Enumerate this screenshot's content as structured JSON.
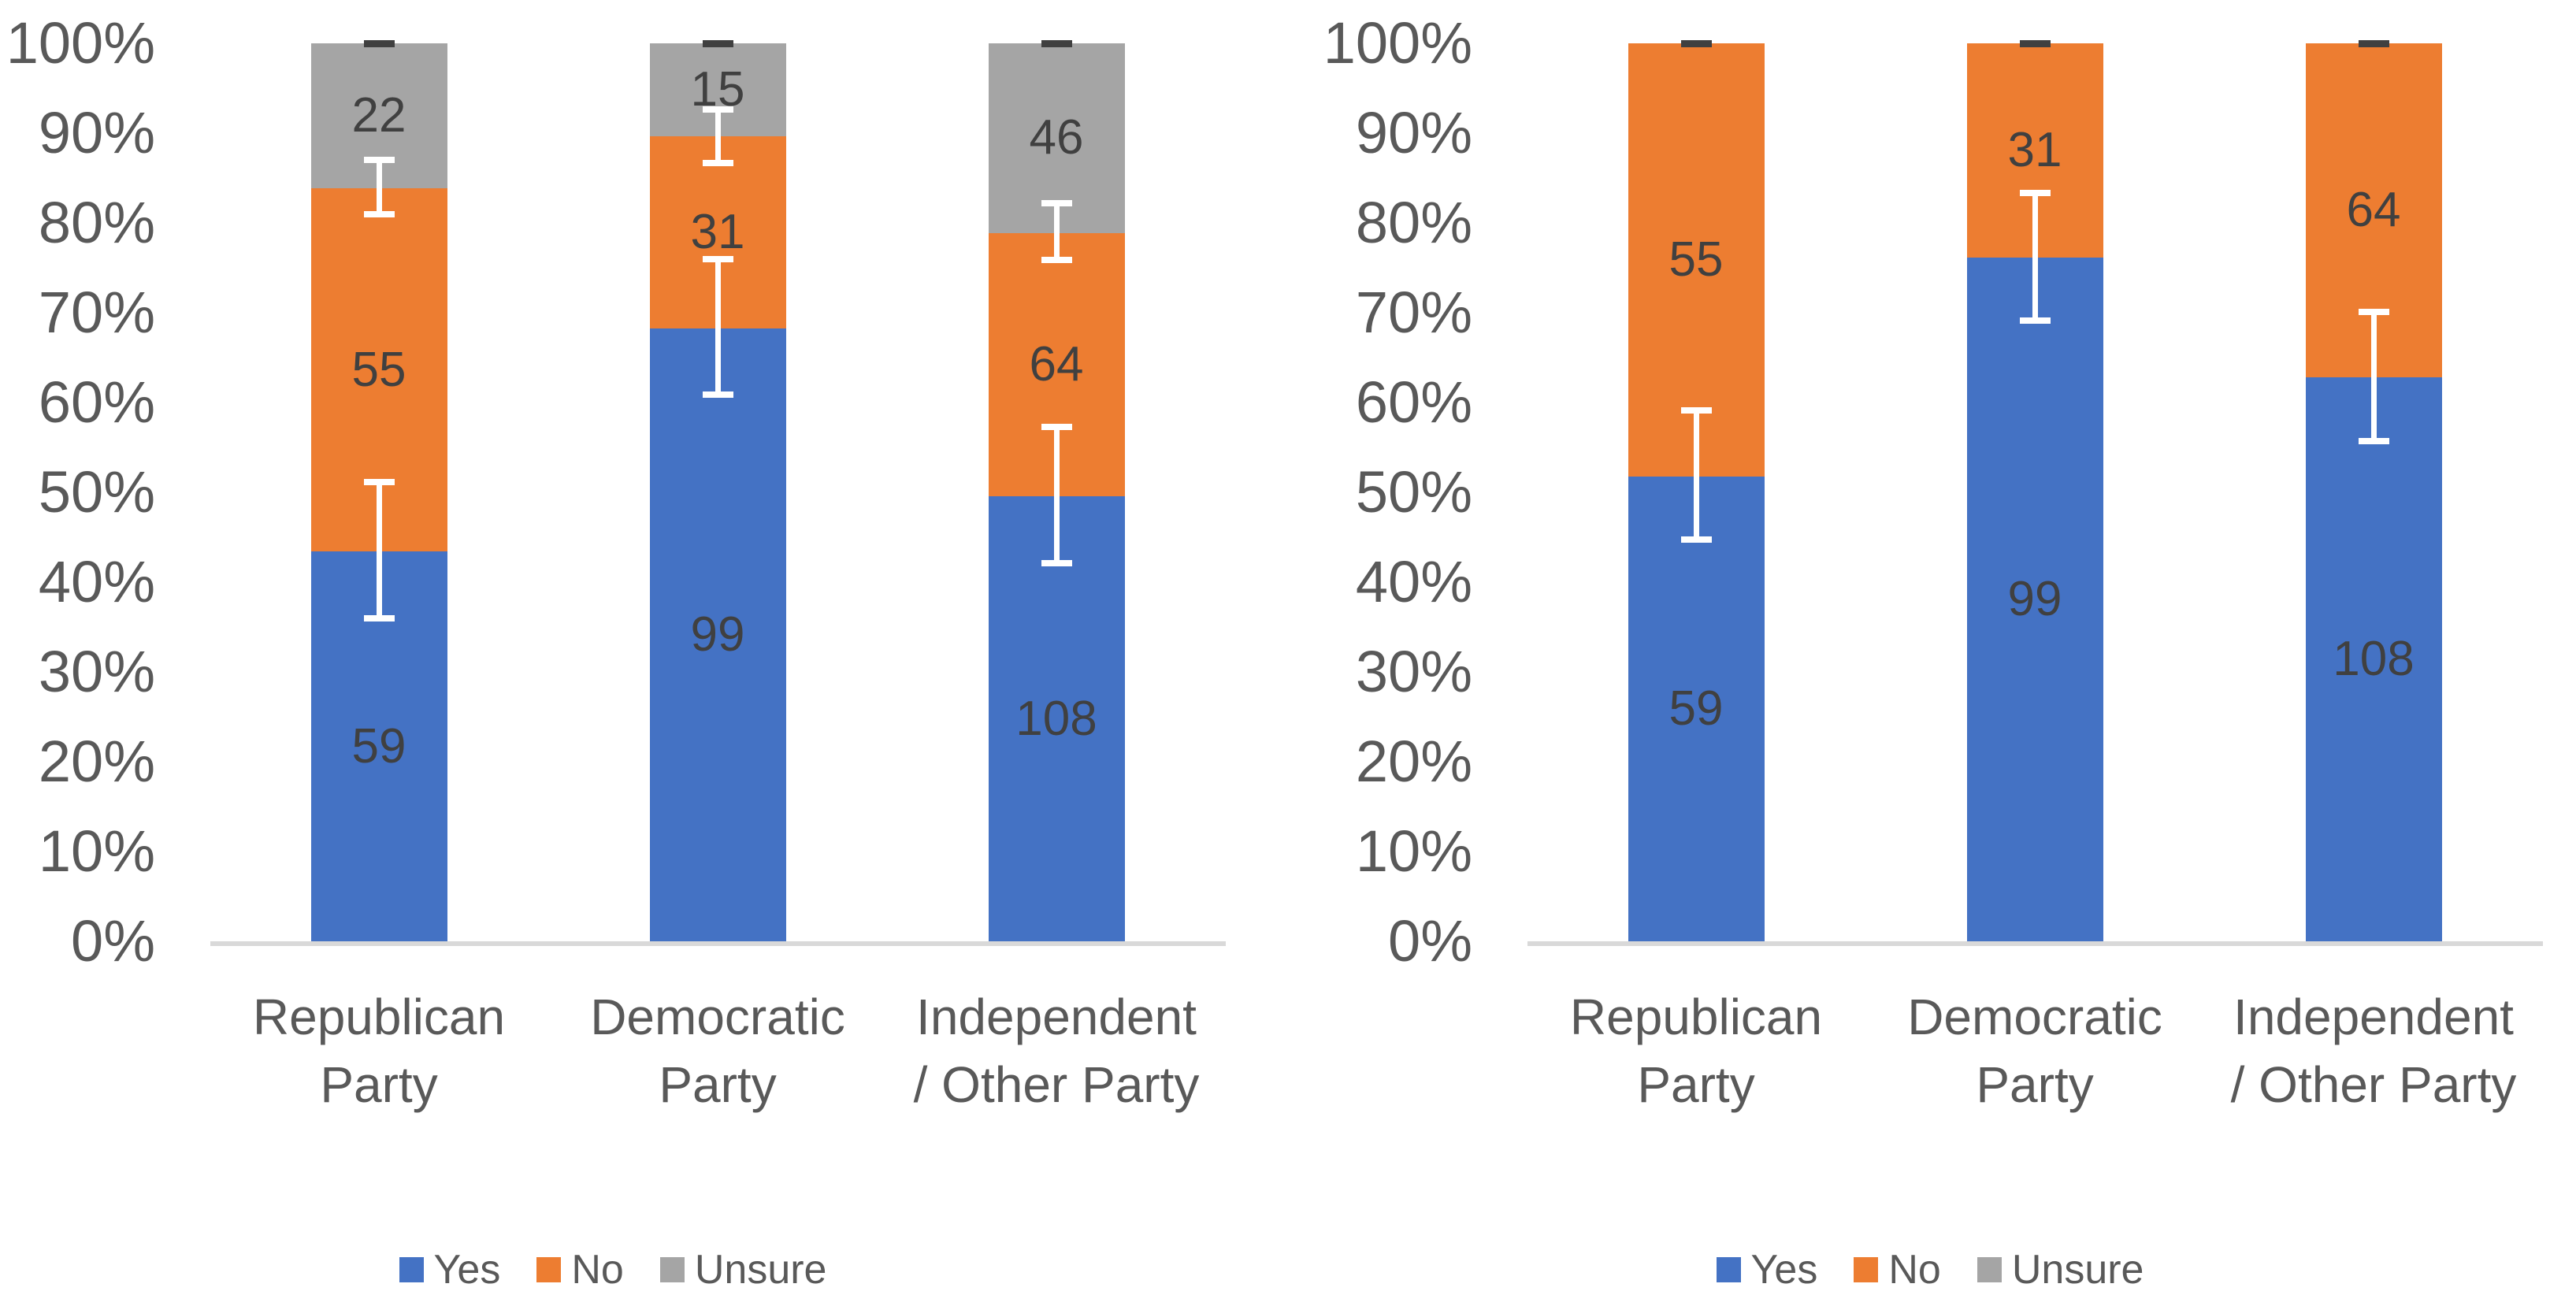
{
  "palette": {
    "yes": "#4472C4",
    "no": "#ED7D31",
    "unsure": "#A5A5A5",
    "axis_line": "#D9D9D9",
    "tick_text": "#595959",
    "category_text": "#595959",
    "data_label_text": "#404040",
    "error_bar": "#FFFFFF",
    "top_cap": "#404040",
    "background": "#FFFFFF"
  },
  "chart_data": [
    {
      "type": "bar",
      "subtype": "stacked-100-percent",
      "title": "",
      "xlabel": "",
      "ylabel": "",
      "ylim": [
        0,
        100
      ],
      "grid": false,
      "legend_position": "bottom",
      "y_ticks": [
        "100%",
        "90%",
        "80%",
        "70%",
        "60%",
        "50%",
        "40%",
        "30%",
        "20%",
        "10%",
        "0%"
      ],
      "categories": [
        "Republican Party",
        "Democratic Party",
        "Independent / Other Party"
      ],
      "category_lines": [
        [
          "Republican",
          "Party"
        ],
        [
          "Democratic",
          "Party"
        ],
        [
          "Independent",
          "/ Other Party"
        ]
      ],
      "series": [
        {
          "name": "Yes",
          "color_key": "yes",
          "values": [
            59,
            99,
            108
          ]
        },
        {
          "name": "No",
          "color_key": "no",
          "values": [
            55,
            31,
            64
          ]
        },
        {
          "name": "Unsure",
          "color_key": "unsure",
          "values": [
            22,
            15,
            46
          ]
        }
      ],
      "segment_percents_cumulative": {
        "yes_top": [
          43.4,
          68.3,
          49.5
        ],
        "no_top": [
          83.8,
          89.7,
          78.9
        ],
        "unsure_top": [
          100,
          100,
          100
        ]
      },
      "legend": [
        "Yes",
        "No",
        "Unsure"
      ],
      "error_bars": [
        {
          "category": 0,
          "low_pct": 36.0,
          "high_pct": 51.1
        },
        {
          "category": 0,
          "low_pct": 81.0,
          "high_pct": 87.0
        },
        {
          "category": 1,
          "low_pct": 60.9,
          "high_pct": 76.0
        },
        {
          "category": 1,
          "low_pct": 86.7,
          "high_pct": 92.6
        },
        {
          "category": 2,
          "low_pct": 42.1,
          "high_pct": 57.3
        },
        {
          "category": 2,
          "low_pct": 75.9,
          "high_pct": 82.2
        }
      ],
      "top_caps_at_100_percent": true
    },
    {
      "type": "bar",
      "subtype": "stacked-100-percent",
      "title": "",
      "xlabel": "",
      "ylabel": "",
      "ylim": [
        0,
        100
      ],
      "grid": false,
      "legend_position": "bottom",
      "y_ticks": [
        "100%",
        "90%",
        "80%",
        "70%",
        "60%",
        "50%",
        "40%",
        "30%",
        "20%",
        "10%",
        "0%"
      ],
      "categories": [
        "Republican Party",
        "Democratic Party",
        "Independent / Other Party"
      ],
      "category_lines": [
        [
          "Republican",
          "Party"
        ],
        [
          "Democratic",
          "Party"
        ],
        [
          "Independent",
          "/ Other Party"
        ]
      ],
      "series": [
        {
          "name": "Yes",
          "color_key": "yes",
          "values": [
            59,
            99,
            108
          ]
        },
        {
          "name": "No",
          "color_key": "no",
          "values": [
            55,
            31,
            64
          ]
        },
        {
          "name": "Unsure",
          "color_key": "unsure",
          "values": [
            0,
            0,
            0
          ]
        }
      ],
      "segment_percents_cumulative": {
        "yes_top": [
          51.8,
          76.2,
          62.8
        ],
        "no_top": [
          100,
          100,
          100
        ]
      },
      "legend": [
        "Yes",
        "No",
        "Unsure"
      ],
      "error_bars": [
        {
          "category": 0,
          "low_pct": 44.7,
          "high_pct": 59.1
        },
        {
          "category": 1,
          "low_pct": 69.1,
          "high_pct": 83.3
        },
        {
          "category": 2,
          "low_pct": 55.7,
          "high_pct": 70.1
        }
      ],
      "top_caps_at_100_percent": true
    }
  ]
}
